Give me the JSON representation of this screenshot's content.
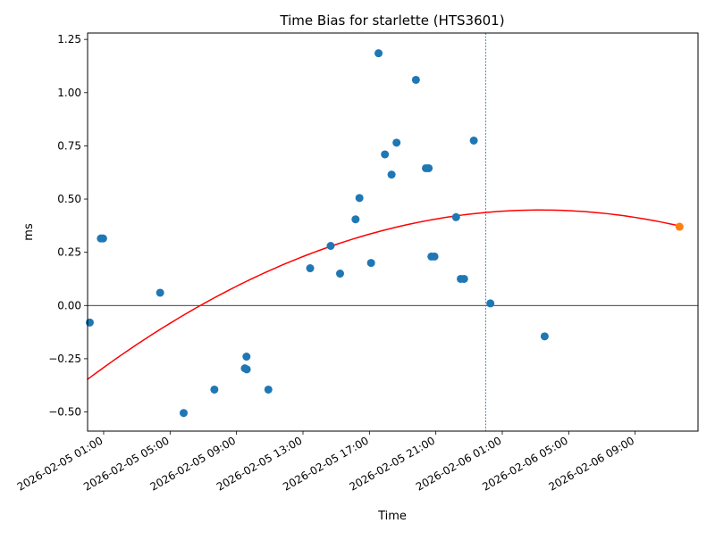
{
  "chart_data": {
    "type": "scatter",
    "title": "Time Bias for starlette (HTS3601)",
    "xlabel": "Time",
    "ylabel": "ms",
    "x_unit": "datetime",
    "xlim": [
      "2026-02-05T00:02",
      "2026-02-06T12:47"
    ],
    "ylim": [
      -0.59,
      1.28
    ],
    "x_ticks": [
      {
        "value": "2026-02-05T01:00",
        "label": "2026-02-05 01:00"
      },
      {
        "value": "2026-02-05T05:00",
        "label": "2026-02-05 05:00"
      },
      {
        "value": "2026-02-05T09:00",
        "label": "2026-02-05 09:00"
      },
      {
        "value": "2026-02-05T13:00",
        "label": "2026-02-05 13:00"
      },
      {
        "value": "2026-02-05T17:00",
        "label": "2026-02-05 17:00"
      },
      {
        "value": "2026-02-05T21:00",
        "label": "2026-02-05 21:00"
      },
      {
        "value": "2026-02-06T01:00",
        "label": "2026-02-06 01:00"
      },
      {
        "value": "2026-02-06T05:00",
        "label": "2026-02-06 05:00"
      },
      {
        "value": "2026-02-06T09:00",
        "label": "2026-02-06 09:00"
      }
    ],
    "y_ticks": [
      {
        "value": -0.5,
        "label": "−0.50"
      },
      {
        "value": -0.25,
        "label": "−0.25"
      },
      {
        "value": 0.0,
        "label": "0.00"
      },
      {
        "value": 0.25,
        "label": "0.25"
      },
      {
        "value": 0.5,
        "label": "0.50"
      },
      {
        "value": 0.75,
        "label": "0.75"
      },
      {
        "value": 1.0,
        "label": "1.00"
      },
      {
        "value": 1.25,
        "label": "1.25"
      }
    ],
    "grid": false,
    "colors": {
      "points": "#1f77b4",
      "highlight": "#ff7f0e",
      "fit": "#ff0000",
      "vline": "#1f77b4",
      "hline": "#000000"
    },
    "vertical_lines": [
      "2026-02-05T00:02",
      "2026-02-06T00:00"
    ],
    "horizontal_line": 0.0,
    "points": [
      {
        "x": "2026-02-05T00:10",
        "y": -0.08
      },
      {
        "x": "2026-02-05T00:50",
        "y": 0.315
      },
      {
        "x": "2026-02-05T00:58",
        "y": 0.315
      },
      {
        "x": "2026-02-05T04:24",
        "y": 0.06
      },
      {
        "x": "2026-02-05T05:49",
        "y": -0.505
      },
      {
        "x": "2026-02-05T07:40",
        "y": -0.395
      },
      {
        "x": "2026-02-05T09:30",
        "y": -0.295
      },
      {
        "x": "2026-02-05T09:37",
        "y": -0.3
      },
      {
        "x": "2026-02-05T09:36",
        "y": -0.24
      },
      {
        "x": "2026-02-05T10:55",
        "y": -0.395
      },
      {
        "x": "2026-02-05T13:26",
        "y": 0.175
      },
      {
        "x": "2026-02-05T14:40",
        "y": 0.28
      },
      {
        "x": "2026-02-05T15:14",
        "y": 0.15
      },
      {
        "x": "2026-02-05T16:10",
        "y": 0.405
      },
      {
        "x": "2026-02-05T16:24",
        "y": 0.505
      },
      {
        "x": "2026-02-05T17:06",
        "y": 0.2
      },
      {
        "x": "2026-02-05T17:33",
        "y": 1.185
      },
      {
        "x": "2026-02-05T17:56",
        "y": 0.71
      },
      {
        "x": "2026-02-05T18:20",
        "y": 0.615
      },
      {
        "x": "2026-02-05T18:38",
        "y": 0.765
      },
      {
        "x": "2026-02-05T19:48",
        "y": 1.06
      },
      {
        "x": "2026-02-05T20:24",
        "y": 0.645
      },
      {
        "x": "2026-02-05T20:34",
        "y": 0.645
      },
      {
        "x": "2026-02-05T20:44",
        "y": 0.23
      },
      {
        "x": "2026-02-05T20:55",
        "y": 0.23
      },
      {
        "x": "2026-02-05T22:13",
        "y": 0.415
      },
      {
        "x": "2026-02-05T22:30",
        "y": 0.125
      },
      {
        "x": "2026-02-05T22:42",
        "y": 0.125
      },
      {
        "x": "2026-02-05T23:17",
        "y": 0.775
      },
      {
        "x": "2026-02-06T00:17",
        "y": 0.01
      },
      {
        "x": "2026-02-06T03:33",
        "y": -0.145
      }
    ],
    "highlight_point": {
      "x": "2026-02-06T11:40",
      "y": 0.37
    },
    "fit_curve": {
      "type": "quadratic",
      "x": [
        "2026-02-05T00:00",
        "2026-02-05T04:00",
        "2026-02-05T08:00",
        "2026-02-05T12:00",
        "2026-02-05T16:00",
        "2026-02-05T20:00",
        "2026-02-06T00:00",
        "2026-02-06T04:00",
        "2026-02-06T08:00",
        "2026-02-06T11:40"
      ],
      "y": [
        -0.35,
        -0.13,
        0.05,
        0.2,
        0.31,
        0.39,
        0.435,
        0.45,
        0.43,
        0.37
      ]
    }
  }
}
